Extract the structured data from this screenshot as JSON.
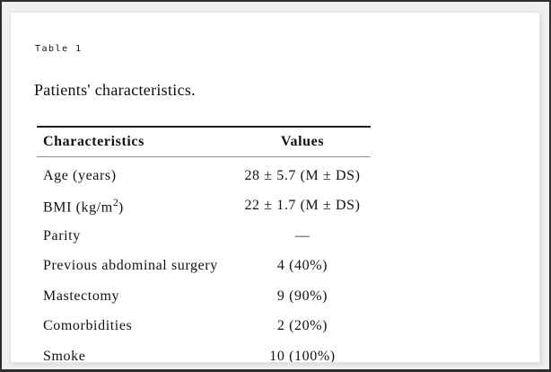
{
  "page": {
    "table_label": "Table 1",
    "title": "Patients' characteristics."
  },
  "table": {
    "headers": {
      "characteristics": "Characteristics",
      "values": "Values"
    },
    "rows": [
      {
        "label": "Age (years)",
        "value": "28 ± 5.7 (M ± DS)"
      },
      {
        "label_pre": "BMI (kg/m",
        "label_sup": "2",
        "label_post": ")",
        "value": "22 ± 1.7 (M ± DS)"
      },
      {
        "label": "Parity",
        "value": "—"
      },
      {
        "label": "Previous abdominal surgery",
        "value": "4 (40%)"
      },
      {
        "label": "Mastectomy",
        "value": "9 (90%)"
      },
      {
        "label": "Comorbidities",
        "value": "2 (20%)"
      },
      {
        "label": "Smoke",
        "value": "10 (100%)"
      }
    ]
  },
  "colors": {
    "frame_border": "#2e2e2e",
    "page_background": "#f0f0f0",
    "card_background": "#ffffff",
    "card_border": "#e3e3e3",
    "table_rule_dark": "#1c1c1c",
    "table_rule_light": "#8f8f8f",
    "text": "#121212"
  },
  "chart_data": {
    "type": "table",
    "caption": "Table 1",
    "title": "Patients' characteristics.",
    "columns": [
      "Characteristics",
      "Values"
    ],
    "rows": [
      [
        "Age (years)",
        "28 ± 5.7 (M ± DS)"
      ],
      [
        "BMI (kg/m2)",
        "22 ± 1.7 (M ± DS)"
      ],
      [
        "Parity",
        "—"
      ],
      [
        "Previous abdominal surgery",
        "4 (40%)"
      ],
      [
        "Mastectomy",
        "9 (90%)"
      ],
      [
        "Comorbidities",
        "2 (20%)"
      ],
      [
        "Smoke",
        "10 (100%)"
      ]
    ]
  }
}
